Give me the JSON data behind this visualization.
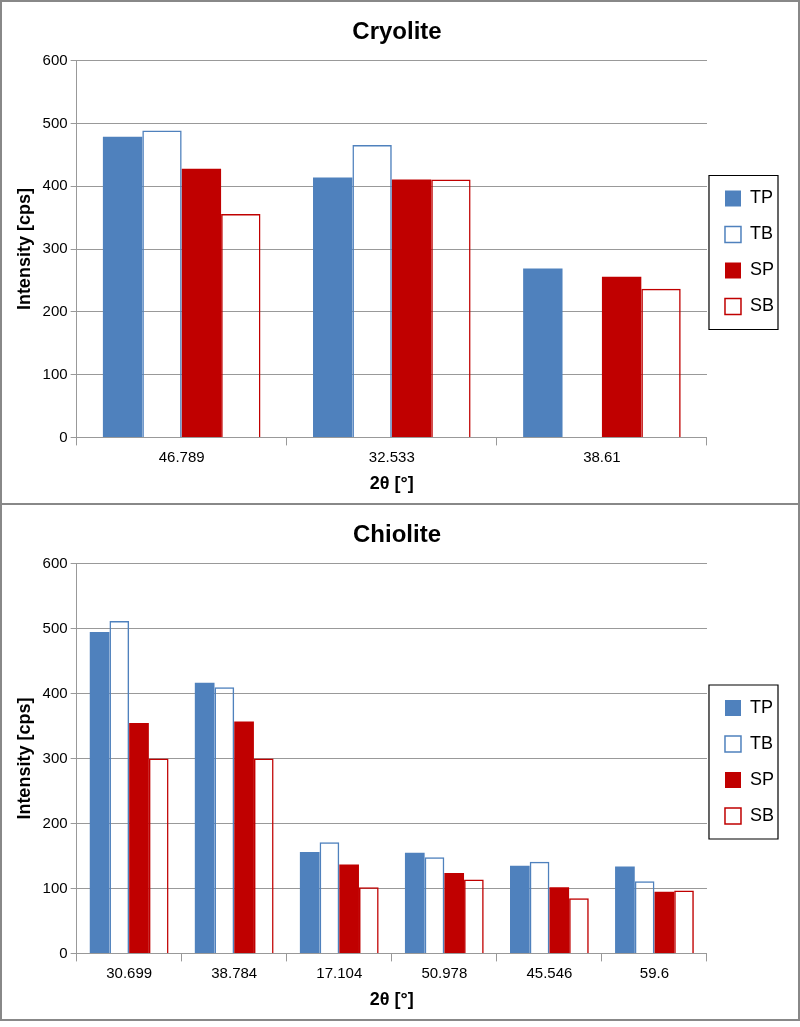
{
  "chart_data": [
    {
      "type": "bar",
      "title": "Cryolite",
      "xlabel": "2θ [°]",
      "ylabel": "Intensity [cps]",
      "categories": [
        "46.789",
        "32.533",
        "38.61"
      ],
      "series": [
        {
          "name": "TP",
          "color": "#4f81bd",
          "values": [
            479,
            414,
            269
          ]
        },
        {
          "name": "TB",
          "color": "#4f81bd",
          "values": [
            489,
            466,
            null
          ]
        },
        {
          "name": "SP",
          "color": "#c00000",
          "values": [
            428,
            411,
            256
          ]
        },
        {
          "name": "SB",
          "color": "#c00000",
          "values": [
            356,
            411,
            237
          ]
        }
      ],
      "ylim": [
        0,
        600
      ],
      "yticks": [
        0,
        100,
        200,
        300,
        400,
        500,
        600
      ],
      "grid": "y",
      "legend": "right"
    },
    {
      "type": "bar",
      "title": "Chiolite",
      "xlabel": "2θ [°]",
      "ylabel": "Intensity [cps]",
      "categories": [
        "30.699",
        "38.784",
        "17.104",
        "50.978",
        "45.546",
        "59.6"
      ],
      "series": [
        {
          "name": "TP",
          "color": "#4f81bd",
          "values": [
            495,
            417,
            156,
            155,
            135,
            134
          ]
        },
        {
          "name": "TB",
          "color": "#4f81bd",
          "values": [
            512,
            410,
            171,
            148,
            141,
            111
          ]
        },
        {
          "name": "SP",
          "color": "#c00000",
          "values": [
            355,
            357,
            137,
            124,
            102,
            95
          ]
        },
        {
          "name": "SB",
          "color": "#c00000",
          "values": [
            300,
            300,
            102,
            114,
            85,
            97
          ]
        }
      ],
      "ylim": [
        0,
        600
      ],
      "yticks": [
        0,
        100,
        200,
        300,
        400,
        500,
        600
      ],
      "grid": "y",
      "legend": "right"
    }
  ]
}
